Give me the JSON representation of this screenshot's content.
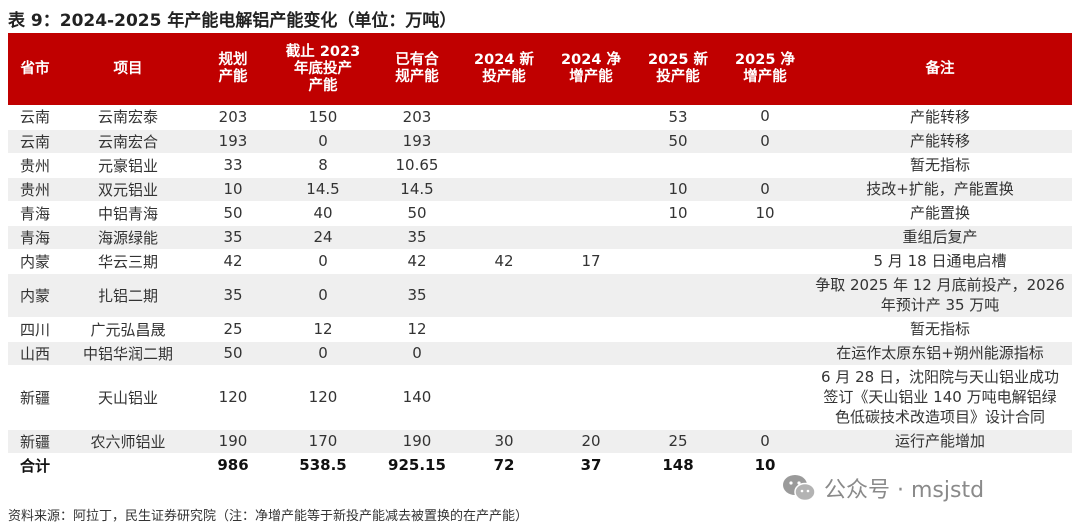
{
  "title": "表 9：2024-2025 年产能电解铝产能变化（单位：万吨）",
  "headers": [
    [
      "省市"
    ],
    [
      "项目"
    ],
    [
      "规划",
      "产能"
    ],
    [
      "截止 2023",
      "年底投产",
      "产能"
    ],
    [
      "已有合",
      "规产能"
    ],
    [
      "2024 新",
      "投产能"
    ],
    [
      "2024 净",
      "增产能"
    ],
    [
      "2025 新",
      "投产能"
    ],
    [
      "2025 净",
      "增产能"
    ],
    [
      "备注"
    ]
  ],
  "rows": [
    {
      "province": "云南",
      "project": "云南宏泰",
      "planned": "203",
      "operating_2023": "150",
      "compliant": "203",
      "new_2024": "",
      "net_2024": "",
      "new_2025": "53",
      "net_2025": "0",
      "note": [
        "产能转移"
      ]
    },
    {
      "province": "云南",
      "project": "云南宏合",
      "planned": "193",
      "operating_2023": "0",
      "compliant": "193",
      "new_2024": "",
      "net_2024": "",
      "new_2025": "50",
      "net_2025": "0",
      "note": [
        "产能转移"
      ]
    },
    {
      "province": "贵州",
      "project": "元豪铝业",
      "planned": "33",
      "operating_2023": "8",
      "compliant": "10.65",
      "new_2024": "",
      "net_2024": "",
      "new_2025": "",
      "net_2025": "",
      "note": [
        "暂无指标"
      ]
    },
    {
      "province": "贵州",
      "project": "双元铝业",
      "planned": "10",
      "operating_2023": "14.5",
      "compliant": "14.5",
      "new_2024": "",
      "net_2024": "",
      "new_2025": "10",
      "net_2025": "0",
      "note": [
        "技改+扩能，产能置换"
      ]
    },
    {
      "province": "青海",
      "project": "中铝青海",
      "planned": "50",
      "operating_2023": "40",
      "compliant": "50",
      "new_2024": "",
      "net_2024": "",
      "new_2025": "10",
      "net_2025": "10",
      "note": [
        "产能置换"
      ]
    },
    {
      "province": "青海",
      "project": "海源绿能",
      "planned": "35",
      "operating_2023": "24",
      "compliant": "35",
      "new_2024": "",
      "net_2024": "",
      "new_2025": "",
      "net_2025": "",
      "note": [
        "重组后复产"
      ]
    },
    {
      "province": "内蒙",
      "project": "华云三期",
      "planned": "42",
      "operating_2023": "0",
      "compliant": "42",
      "new_2024": "42",
      "net_2024": "17",
      "new_2025": "",
      "net_2025": "",
      "note": [
        "5 月 18 日通电启槽"
      ]
    },
    {
      "province": "内蒙",
      "project": "扎铝二期",
      "planned": "35",
      "operating_2023": "0",
      "compliant": "35",
      "new_2024": "",
      "net_2024": "",
      "new_2025": "",
      "net_2025": "",
      "note": [
        "争取 2025 年 12 月底前投产，2026",
        "年预计产 35 万吨"
      ]
    },
    {
      "province": "四川",
      "project": "广元弘昌晟",
      "planned": "25",
      "operating_2023": "12",
      "compliant": "12",
      "new_2024": "",
      "net_2024": "",
      "new_2025": "",
      "net_2025": "",
      "note": [
        "暂无指标"
      ]
    },
    {
      "province": "山西",
      "project": "中铝华润二期",
      "planned": "50",
      "operating_2023": "0",
      "compliant": "0",
      "new_2024": "",
      "net_2024": "",
      "new_2025": "",
      "net_2025": "",
      "note": [
        "在运作太原东铝+朔州能源指标"
      ]
    },
    {
      "province": "新疆",
      "project": "天山铝业",
      "planned": "120",
      "operating_2023": "120",
      "compliant": "140",
      "new_2024": "",
      "net_2024": "",
      "new_2025": "",
      "net_2025": "",
      "note": [
        "6 月 28 日，沈阳院与天山铝业成功",
        "签订《天山铝业 140 万吨电解铝绿",
        "色低碳技术改造项目》设计合同"
      ]
    },
    {
      "province": "新疆",
      "project": "农六师铝业",
      "planned": "190",
      "operating_2023": "170",
      "compliant": "190",
      "new_2024": "30",
      "net_2024": "20",
      "new_2025": "25",
      "net_2025": "0",
      "note": [
        "运行产能增加"
      ]
    }
  ],
  "total": {
    "label": "合计",
    "planned": "986",
    "operating_2023": "538.5",
    "compliant": "925.15",
    "new_2024": "72",
    "net_2024": "37",
    "new_2025": "148",
    "net_2025": "10"
  },
  "source": "资料来源：阿拉丁，民生证券研究院（注：净增产能等于新投产能减去被置换的在产产能）",
  "watermark": {
    "icon": "wechat-icon",
    "text": "公众号 · msjstd"
  }
}
